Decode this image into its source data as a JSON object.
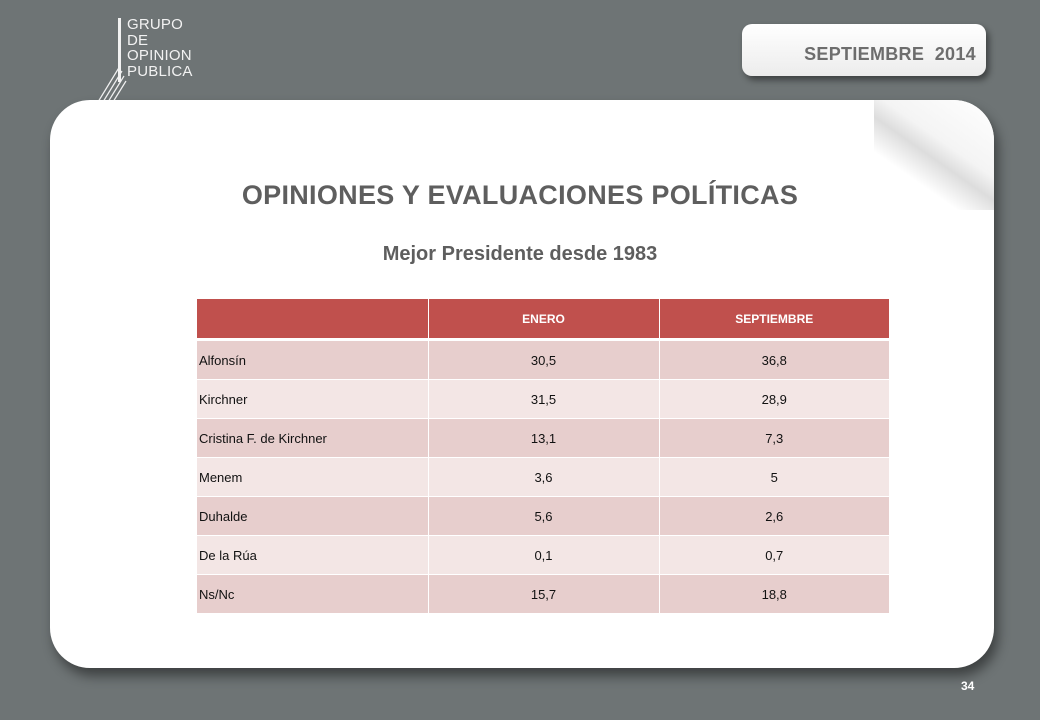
{
  "header": {
    "logo_lines": [
      "GRUPO",
      "DE",
      "OPINION",
      "PUBLICA"
    ],
    "date": "SEPTIEMBRE  2014"
  },
  "slide": {
    "title": "OPINIONES Y EVALUACIONES POLÍTICAS",
    "subtitle": "Mejor Presidente desde 1983"
  },
  "table": {
    "columns": [
      "",
      "ENERO",
      "SEPTIEMBRE"
    ],
    "rows": [
      {
        "name": "Alfonsín",
        "enero": "30,5",
        "septiembre": "36,8"
      },
      {
        "name": "Kirchner",
        "enero": "31,5",
        "septiembre": "28,9"
      },
      {
        "name": "Cristina F. de Kirchner",
        "enero": "13,1",
        "septiembre": "7,3"
      },
      {
        "name": "Menem",
        "enero": "3,6",
        "septiembre": "5"
      },
      {
        "name": "Duhalde",
        "enero": "5,6",
        "septiembre": "2,6"
      },
      {
        "name": "De la Rúa",
        "enero": "0,1",
        "septiembre": "0,7"
      },
      {
        "name": "Ns/Nc",
        "enero": "15,7",
        "septiembre": "18,8"
      }
    ]
  },
  "footer": {
    "page_number": "34"
  }
}
